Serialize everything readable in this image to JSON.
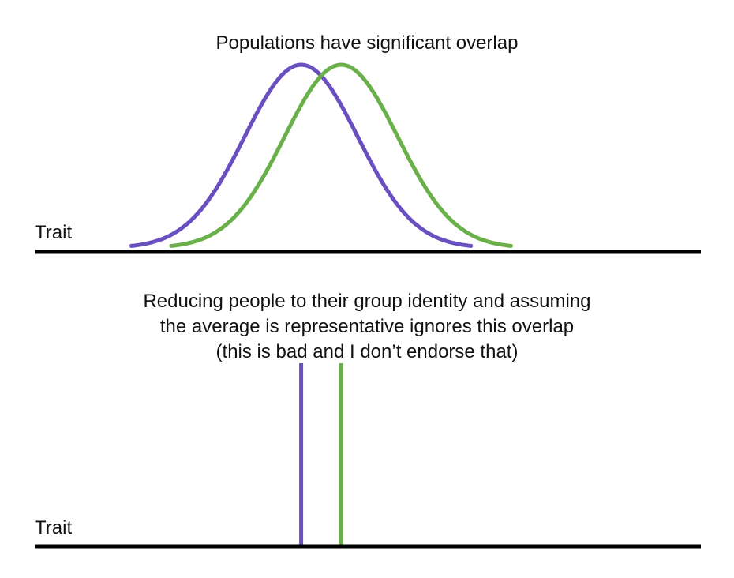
{
  "top_panel": {
    "title": "Populations have significant overlap",
    "axis_label": "Trait",
    "curves": [
      {
        "color": "#6a4fc1",
        "mean": 0.4,
        "spread": 0.085
      },
      {
        "color": "#6ab04a",
        "mean": 0.46,
        "spread": 0.085
      }
    ]
  },
  "bottom_panel": {
    "caption_lines": [
      "Reducing people to their group identity and assuming",
      "the average is representative ignores this overlap",
      "(this is bad and I don’t endorse that)"
    ],
    "axis_label": "Trait",
    "mean_lines": [
      {
        "color": "#6a4fc1",
        "position": 0.4
      },
      {
        "color": "#6ab04a",
        "position": 0.46
      }
    ]
  },
  "colors": {
    "axis": "#000000",
    "group_a": "#6a4fc1",
    "group_b": "#6ab04a"
  }
}
